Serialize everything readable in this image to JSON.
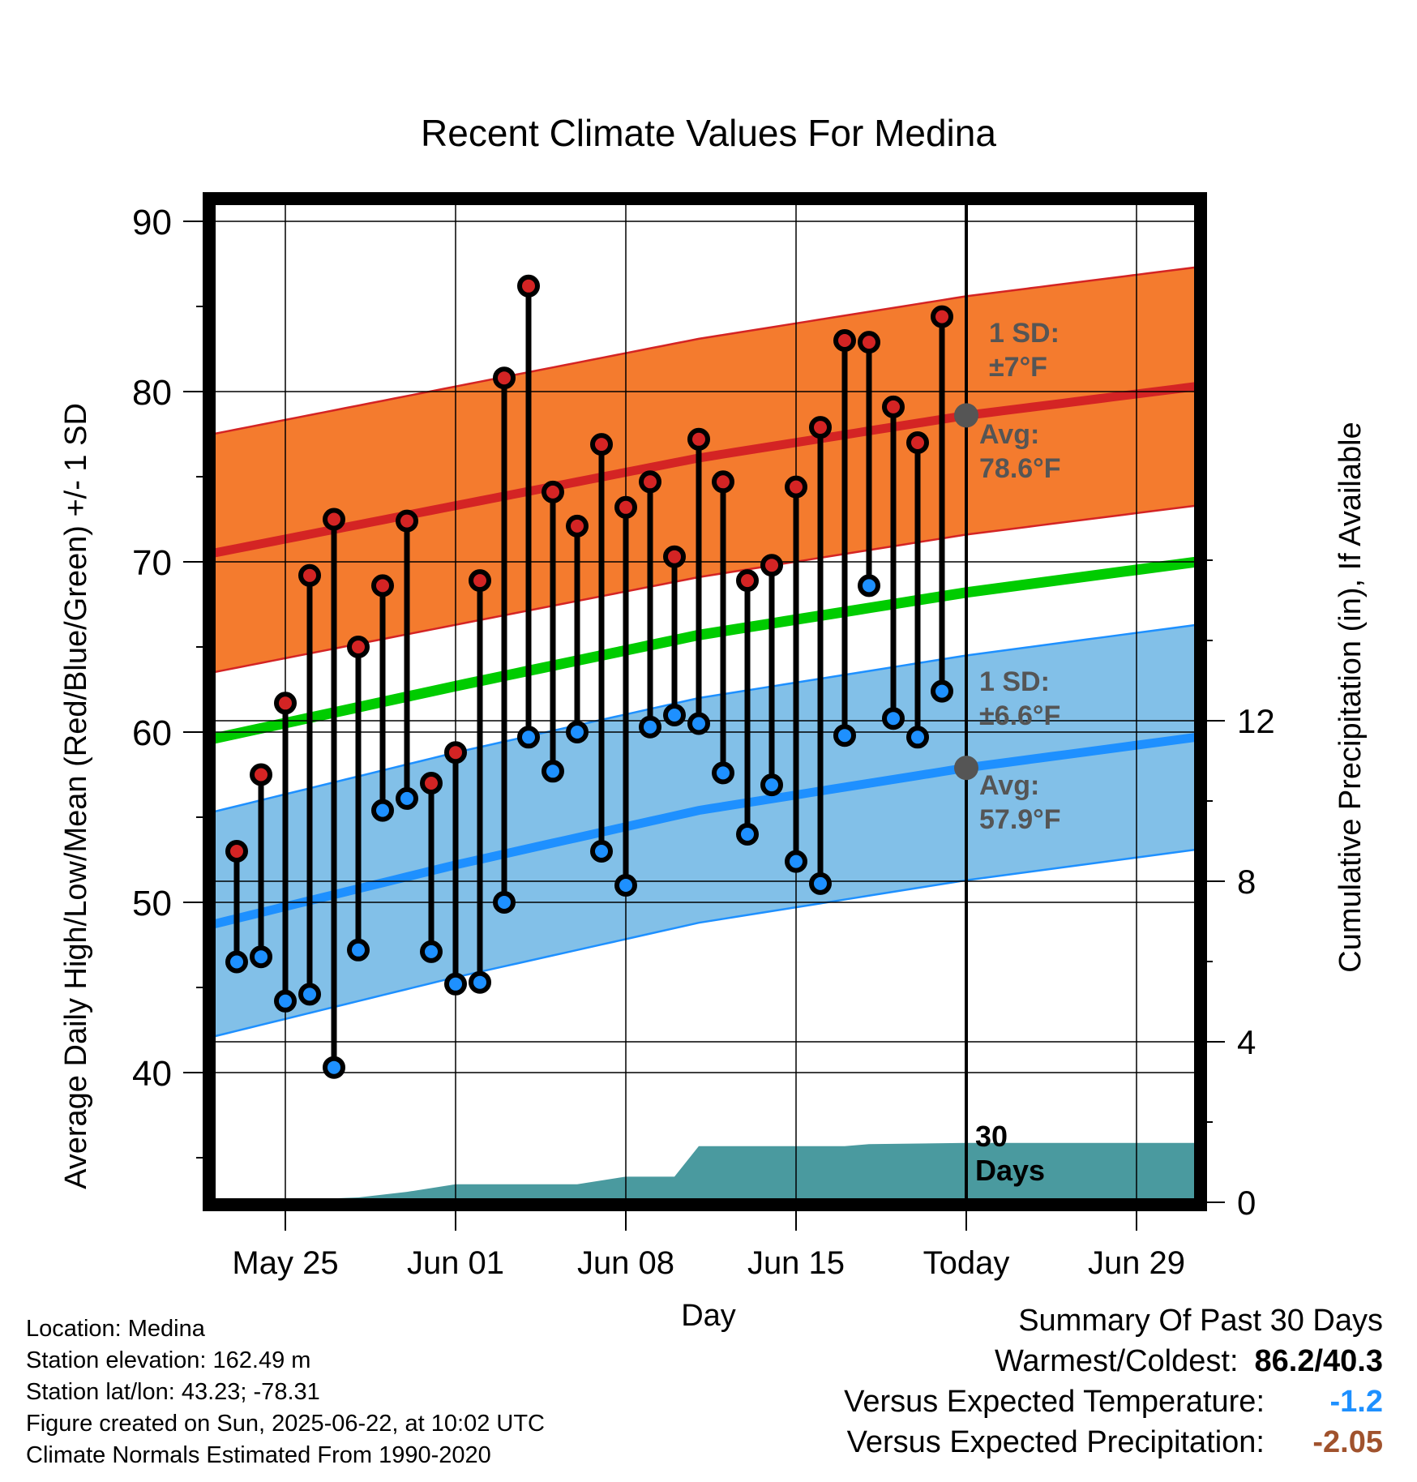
{
  "chart_data": {
    "type": "line",
    "title": "Recent Climate Values For Medina",
    "xlabel": "Day",
    "ylabel_left": "Average Daily High/Low/Mean (Red/Blue/Green) +/- 1 SD",
    "ylabel_right": "Cumulative Precipitation (in), If Available",
    "x_tick_labels": [
      "May 25",
      "Jun 01",
      "Jun 08",
      "Jun 15",
      "Today",
      "Jun 29"
    ],
    "y_left_ticks": [
      40,
      50,
      60,
      70,
      80,
      90
    ],
    "y_right_ticks": [
      0,
      4,
      8,
      12
    ],
    "ylim_left": [
      32.5,
      91.5
    ],
    "xlim_days": [
      -30.5,
      9.5
    ],
    "grid": true,
    "today_marker_label": "30\nDays",
    "daily_observations": {
      "day_offset": [
        -30,
        -29,
        -28,
        -27,
        -26,
        -25,
        -24,
        -23,
        -22,
        -21,
        -20,
        -19,
        -18,
        -17,
        -16,
        -15,
        -14,
        -13,
        -12,
        -11,
        -10,
        -9,
        -8,
        -7,
        -6,
        -5,
        -4,
        -3,
        -2,
        -1
      ],
      "high": [
        53.0,
        57.5,
        61.7,
        69.2,
        72.5,
        65.0,
        68.6,
        72.4,
        57.0,
        58.8,
        68.9,
        80.8,
        86.2,
        74.1,
        72.1,
        76.9,
        73.2,
        74.7,
        70.3,
        77.2,
        74.7,
        68.9,
        69.8,
        74.4,
        77.9,
        83.0,
        82.9,
        79.1,
        77.0,
        84.4
      ],
      "low": [
        46.5,
        46.8,
        44.2,
        44.6,
        40.3,
        47.2,
        55.4,
        56.1,
        47.1,
        45.2,
        45.3,
        50.0,
        59.7,
        57.7,
        60.0,
        53.0,
        51.0,
        60.3,
        61.0,
        60.5,
        57.6,
        54.0,
        56.9,
        52.4,
        51.1,
        59.8,
        68.6,
        60.8,
        59.7,
        62.4
      ]
    },
    "normal_high": {
      "day_offset": [
        -31,
        -21,
        -11,
        0,
        10
      ],
      "avg": [
        70.5,
        73.3,
        76.1,
        78.6,
        80.4
      ],
      "sd": 7
    },
    "normal_low": {
      "day_offset": [
        -31,
        -21,
        -11,
        0,
        10
      ],
      "avg": [
        48.7,
        52.2,
        55.4,
        57.9,
        59.8
      ],
      "sd": 6.6
    },
    "normal_mean": {
      "day_offset": [
        -31,
        -21,
        -11,
        0,
        10
      ],
      "avg": [
        59.6,
        62.7,
        65.7,
        68.2,
        70.1
      ]
    },
    "cumulative_precipitation": {
      "day_offset": [
        -31,
        -28,
        -25,
        -23,
        -21,
        -19,
        -16,
        -14,
        -12,
        -11,
        -5,
        -4,
        0,
        10
      ],
      "inches": [
        0.0,
        0.05,
        0.12,
        0.26,
        0.45,
        0.45,
        0.45,
        0.64,
        0.64,
        1.4,
        1.4,
        1.45,
        1.48,
        1.48
      ]
    },
    "annotations": {
      "high_sd_label": "1 SD:\n±7°F",
      "high_avg_label": "Avg:\n78.6°F",
      "low_sd_label": "1 SD:\n±6.6°F",
      "low_avg_label": "Avg:\n57.9°F"
    }
  },
  "station_info": {
    "location": "Location: Medina",
    "elevation": "Station elevation: 162.49 m",
    "latlon": "Station lat/lon: 43.23; -78.31",
    "created": "Figure created on Sun, 2025-06-22, at 10:02 UTC",
    "normals": "Climate Normals Estimated From 1990-2020"
  },
  "summary": {
    "title": "Summary Of Past 30 Days",
    "warmest_coldest_label": "Warmest/Coldest:",
    "warmest_coldest_value": "86.2/40.3",
    "temp_label": "Versus Expected Temperature:",
    "temp_value": "-1.2",
    "precip_label": "Versus Expected Precipitation:",
    "precip_value": "-2.05"
  },
  "colors": {
    "high_band": "#f47b2e",
    "high_line": "#d42424",
    "low_band": "#82c0e8",
    "low_line": "#1e90ff",
    "mean_line": "#00cc00",
    "precip_fill": "#4a9a9f",
    "annotation_text": "#555555",
    "temp_anomaly": "#1e90ff",
    "precip_anomaly": "#a0522d"
  }
}
